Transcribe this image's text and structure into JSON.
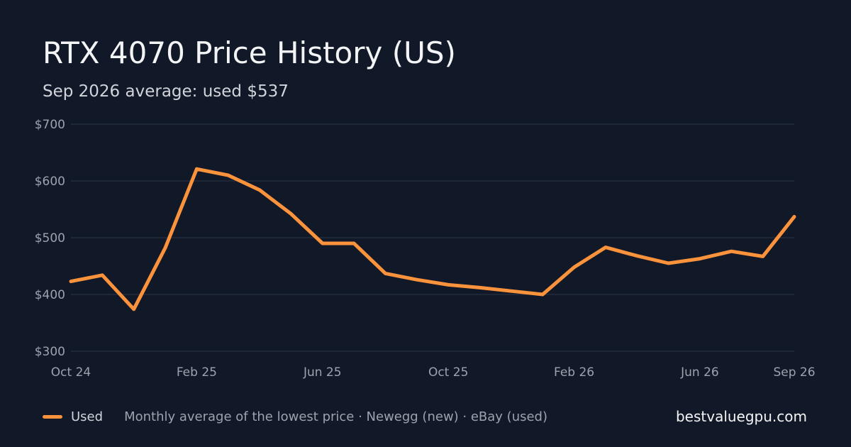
{
  "header": {
    "title": "RTX 4070 Price History (US)",
    "subtitle": "Sep 2026 average: used $537"
  },
  "footer": {
    "note": "Monthly average of the lowest price · Newegg (new) · eBay (used)",
    "brand": "bestvaluegpu.com"
  },
  "colors": {
    "background": "#111827",
    "grid": "#263041",
    "used": "#fb923c",
    "tick_text": "#9ca3af"
  },
  "chart_data": {
    "type": "line",
    "title": "RTX 4070 Price History (US)",
    "subtitle": "Sep 2026 average: used $537",
    "x": [
      "2024-10",
      "2024-11",
      "2024-12",
      "2025-01",
      "2025-02",
      "2025-03",
      "2025-04",
      "2025-05",
      "2025-06",
      "2025-07",
      "2025-08",
      "2025-09",
      "2025-10",
      "2025-11",
      "2025-12",
      "2026-01",
      "2026-02",
      "2026-03",
      "2026-04",
      "2026-05",
      "2026-06",
      "2026-07",
      "2026-08",
      "2026-09"
    ],
    "x_ticks": [
      {
        "x": "2024-10",
        "label": "Oct 24"
      },
      {
        "x": "2025-02",
        "label": "Feb 25"
      },
      {
        "x": "2025-06",
        "label": "Jun 25"
      },
      {
        "x": "2025-10",
        "label": "Oct 25"
      },
      {
        "x": "2026-02",
        "label": "Feb 26"
      },
      {
        "x": "2026-06",
        "label": "Jun 26"
      },
      {
        "x": "2026-09",
        "label": "Sep 26"
      }
    ],
    "y_ticks": [
      {
        "value": 300,
        "label": "$300"
      },
      {
        "value": 400,
        "label": "$400"
      },
      {
        "value": 500,
        "label": "$500"
      },
      {
        "value": 600,
        "label": "$600"
      },
      {
        "value": 700,
        "label": "$700"
      }
    ],
    "ylim": [
      300,
      700
    ],
    "grid": true,
    "legend": "bottom-left",
    "series": [
      {
        "name": "Used",
        "values": [
          423,
          434,
          374,
          482,
          621,
          610,
          584,
          542,
          490,
          490,
          437,
          426,
          417,
          412,
          406,
          400,
          448,
          483,
          468,
          455,
          463,
          476,
          467,
          537
        ]
      }
    ]
  }
}
